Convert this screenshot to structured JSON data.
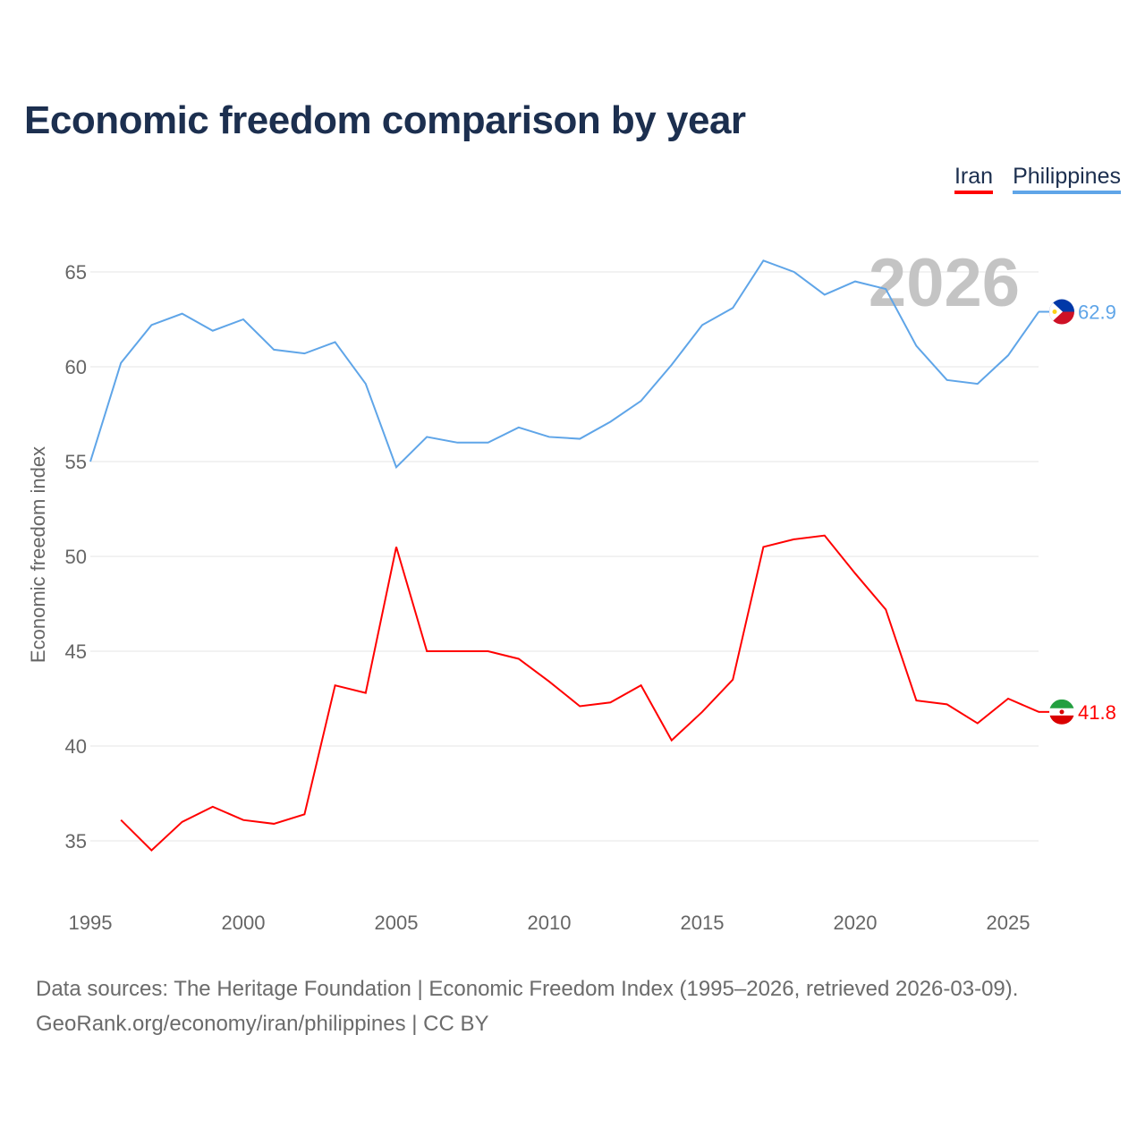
{
  "title": "Economic freedom comparison by year",
  "legend": [
    {
      "label": "Iran",
      "color": "#ff0000"
    },
    {
      "label": "Philippines",
      "color": "#5fa5e8"
    }
  ],
  "year_overlay": "2026",
  "footer": {
    "line1": "Data sources: The Heritage Foundation | Economic Freedom Index (1995–2026, retrieved 2026-03-09).",
    "line2": "GeoRank.org/economy/iran/philippines | CC BY"
  },
  "chart_data": {
    "type": "line",
    "title": "Economic freedom comparison by year",
    "xlabel": "",
    "ylabel": "Economic freedom index",
    "xlim": [
      1995,
      2026
    ],
    "ylim": [
      32,
      67
    ],
    "x_ticks": [
      "1995",
      "2000",
      "2005",
      "2010",
      "2015",
      "2020",
      "2025"
    ],
    "y_ticks": [
      "35",
      "40",
      "45",
      "50",
      "55",
      "60",
      "65"
    ],
    "grid": true,
    "legend_position": "top-right",
    "series": [
      {
        "name": "Iran",
        "color": "#ff0000",
        "end_label": "41.8",
        "x": [
          1996,
          1997,
          1998,
          1999,
          2000,
          2001,
          2002,
          2003,
          2004,
          2005,
          2006,
          2007,
          2008,
          2009,
          2010,
          2011,
          2012,
          2013,
          2014,
          2015,
          2016,
          2017,
          2018,
          2019,
          2020,
          2021,
          2022,
          2023,
          2024,
          2025,
          2026
        ],
        "values": [
          36.1,
          34.5,
          36.0,
          36.8,
          36.1,
          35.9,
          36.4,
          43.2,
          42.8,
          50.5,
          45.0,
          45.0,
          45.0,
          44.6,
          43.4,
          42.1,
          42.3,
          43.2,
          40.3,
          41.8,
          43.5,
          50.5,
          50.9,
          51.1,
          49.1,
          47.2,
          42.4,
          42.2,
          41.2,
          42.5,
          41.8
        ]
      },
      {
        "name": "Philippines",
        "color": "#5fa5e8",
        "end_label": "62.9",
        "x": [
          1995,
          1996,
          1997,
          1998,
          1999,
          2000,
          2001,
          2002,
          2003,
          2004,
          2005,
          2006,
          2007,
          2008,
          2009,
          2010,
          2011,
          2012,
          2013,
          2014,
          2015,
          2016,
          2017,
          2018,
          2019,
          2020,
          2021,
          2022,
          2023,
          2024,
          2025,
          2026
        ],
        "values": [
          55.0,
          60.2,
          62.2,
          62.8,
          61.9,
          62.5,
          60.9,
          60.7,
          61.3,
          59.1,
          54.7,
          56.3,
          56.0,
          56.0,
          56.8,
          56.3,
          56.2,
          57.1,
          58.2,
          60.1,
          62.2,
          63.1,
          65.6,
          65.0,
          63.8,
          64.5,
          64.1,
          61.1,
          59.3,
          59.1,
          60.6,
          62.9
        ]
      }
    ]
  }
}
